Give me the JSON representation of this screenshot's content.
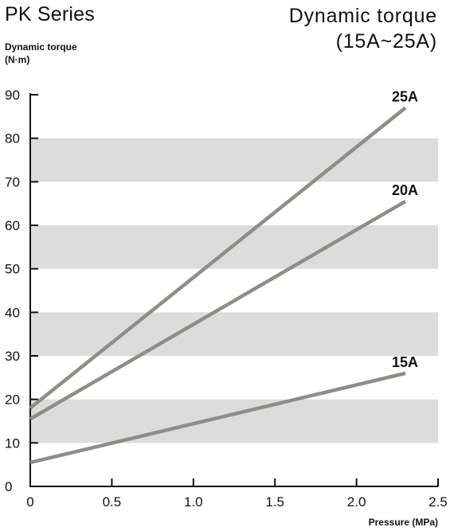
{
  "header": {
    "series_title": "PK Series",
    "chart_title_line1": "Dynamic torque",
    "chart_title_line2": "(15A~25A)"
  },
  "chart_data": {
    "type": "line",
    "title": "Dynamic torque (15A~25A)",
    "ylabel_line1": "Dynamic torque",
    "ylabel_line2": "(N·m)",
    "xlabel": "Pressure (MPa)",
    "xlim": [
      0,
      2.5
    ],
    "ylim": [
      0,
      90
    ],
    "x_ticks": [
      0,
      0.5,
      1.0,
      1.5,
      2.0,
      2.5
    ],
    "x_tick_labels": [
      "0",
      "0.5",
      "1.0",
      "1.5",
      "2.0",
      "2.5"
    ],
    "y_ticks": [
      0,
      10,
      20,
      30,
      40,
      50,
      60,
      70,
      80,
      90
    ],
    "y_tick_labels": [
      "0",
      "10",
      "20",
      "30",
      "40",
      "50",
      "60",
      "70",
      "80",
      "90"
    ],
    "bands": [
      [
        10,
        20
      ],
      [
        30,
        40
      ],
      [
        50,
        60
      ],
      [
        70,
        80
      ]
    ],
    "band_color": "#dcdcdc",
    "line_color": "#8d8f85",
    "series": [
      {
        "name": "25A",
        "x": [
          0,
          2.3
        ],
        "y": [
          18,
          87
        ]
      },
      {
        "name": "20A",
        "x": [
          0,
          2.3
        ],
        "y": [
          15.5,
          65.5
        ]
      },
      {
        "name": "15A",
        "x": [
          0,
          2.3
        ],
        "y": [
          5.5,
          26
        ]
      }
    ]
  }
}
